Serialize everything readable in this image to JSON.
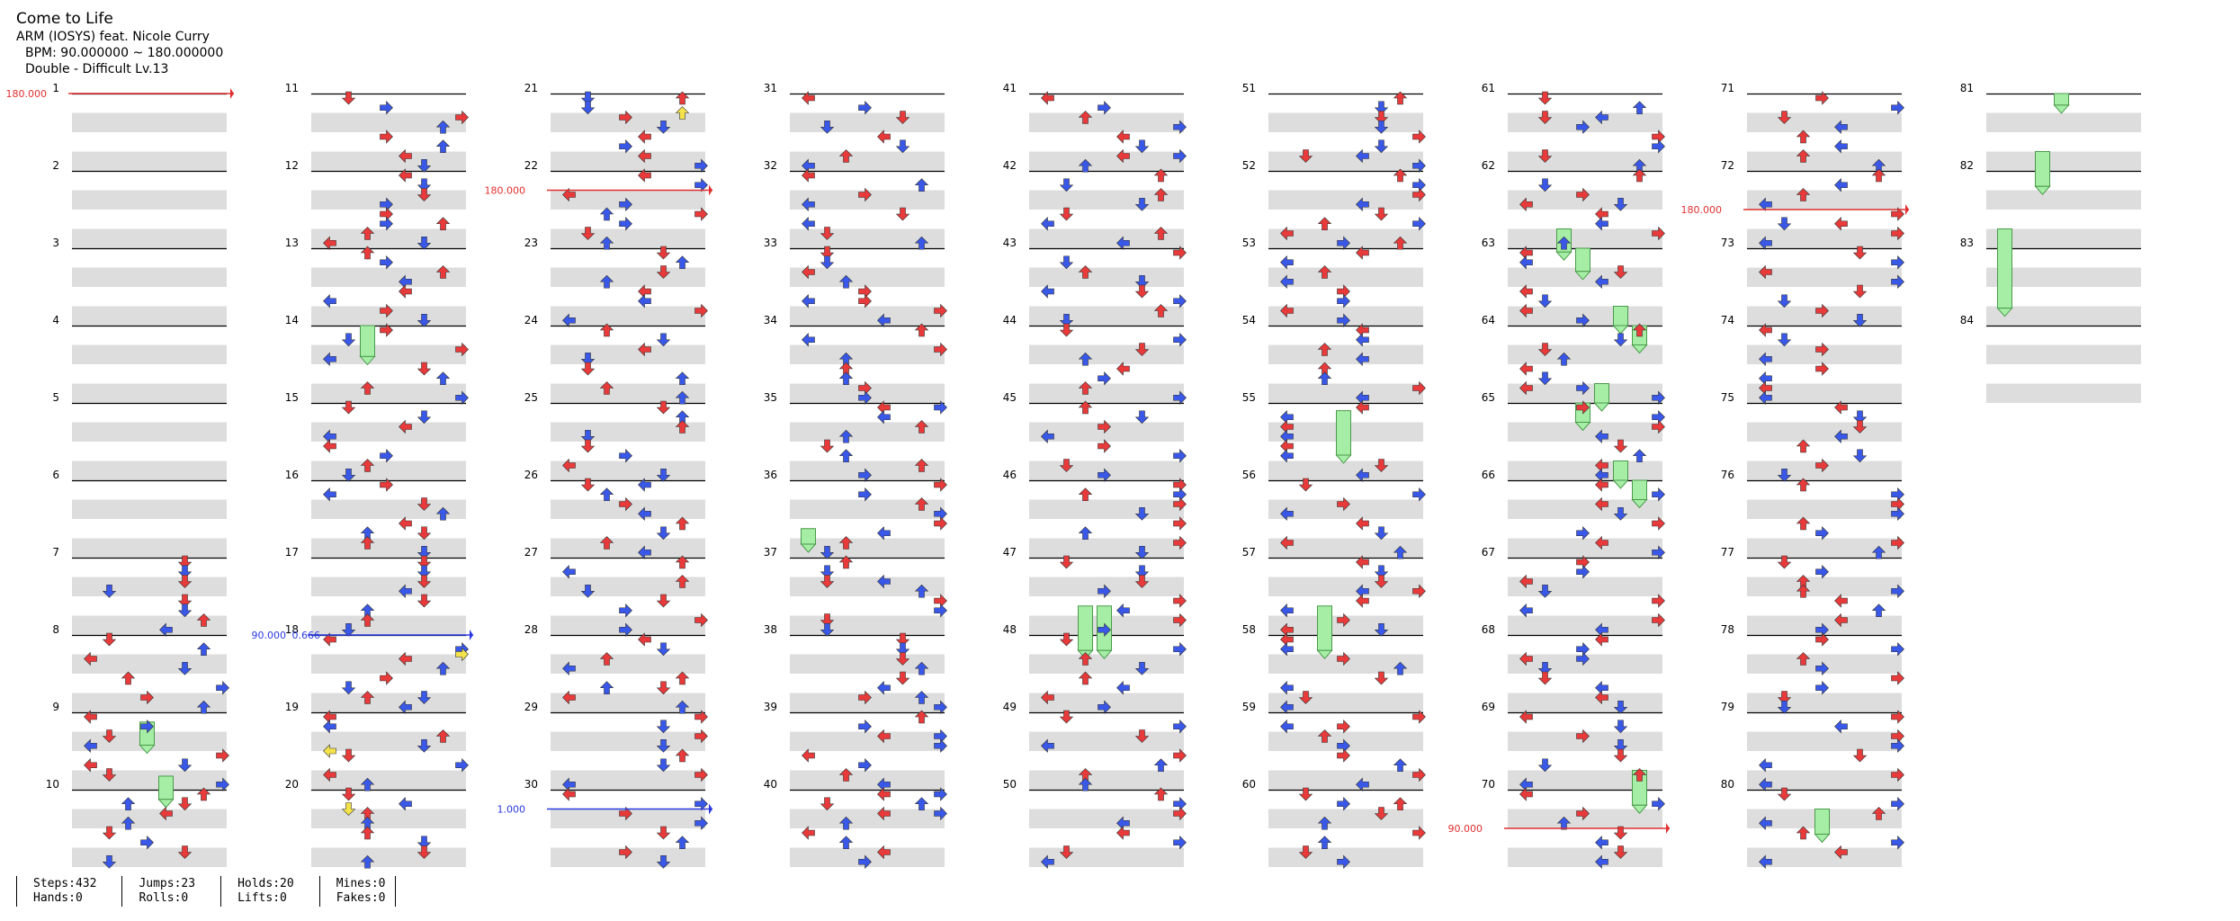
{
  "song": {
    "title": "Come to Life",
    "artist_line": "ARM (IOSYS) feat. Nicole Curry",
    "bpm_line": "BPM: 90.000000 ~ 180.000000",
    "difficulty_line": "Double - Difficult  Lv.13"
  },
  "stats": {
    "steps": "Steps:432",
    "hands": "Hands:0",
    "jumps": "Jumps:23",
    "rolls": "Rolls:0",
    "holds": "Holds:20",
    "lifts": "Lifts:0",
    "mines": "Mines:0",
    "fakes": "Fakes:0"
  },
  "colors": {
    "red_note": "#e83a3a",
    "blue_note": "#3a58e8",
    "yellow_note": "#f4e24a",
    "hold_body": "#a6eea6",
    "hold_border": "#4a9a4a",
    "row_stripe": "#dddddd",
    "bpm_up_marker": "#e03030",
    "bpm_down_marker": "#2a3ae0"
  },
  "bpm_markers": [
    {
      "measure": 1,
      "label": "180.000",
      "color": "red"
    },
    {
      "measure": 18,
      "label": "90.000",
      "color": "blue"
    },
    {
      "measure": 18,
      "label": "0.666",
      "color": "blue"
    },
    {
      "measure": 22,
      "label": "180.000",
      "color": "red"
    },
    {
      "measure": 30,
      "label": "1.000",
      "color": "blue"
    },
    {
      "measure": 70,
      "label": "90.000",
      "color": "red"
    },
    {
      "measure": 72,
      "label": "180.000",
      "color": "red"
    }
  ],
  "measure_count": 84
}
